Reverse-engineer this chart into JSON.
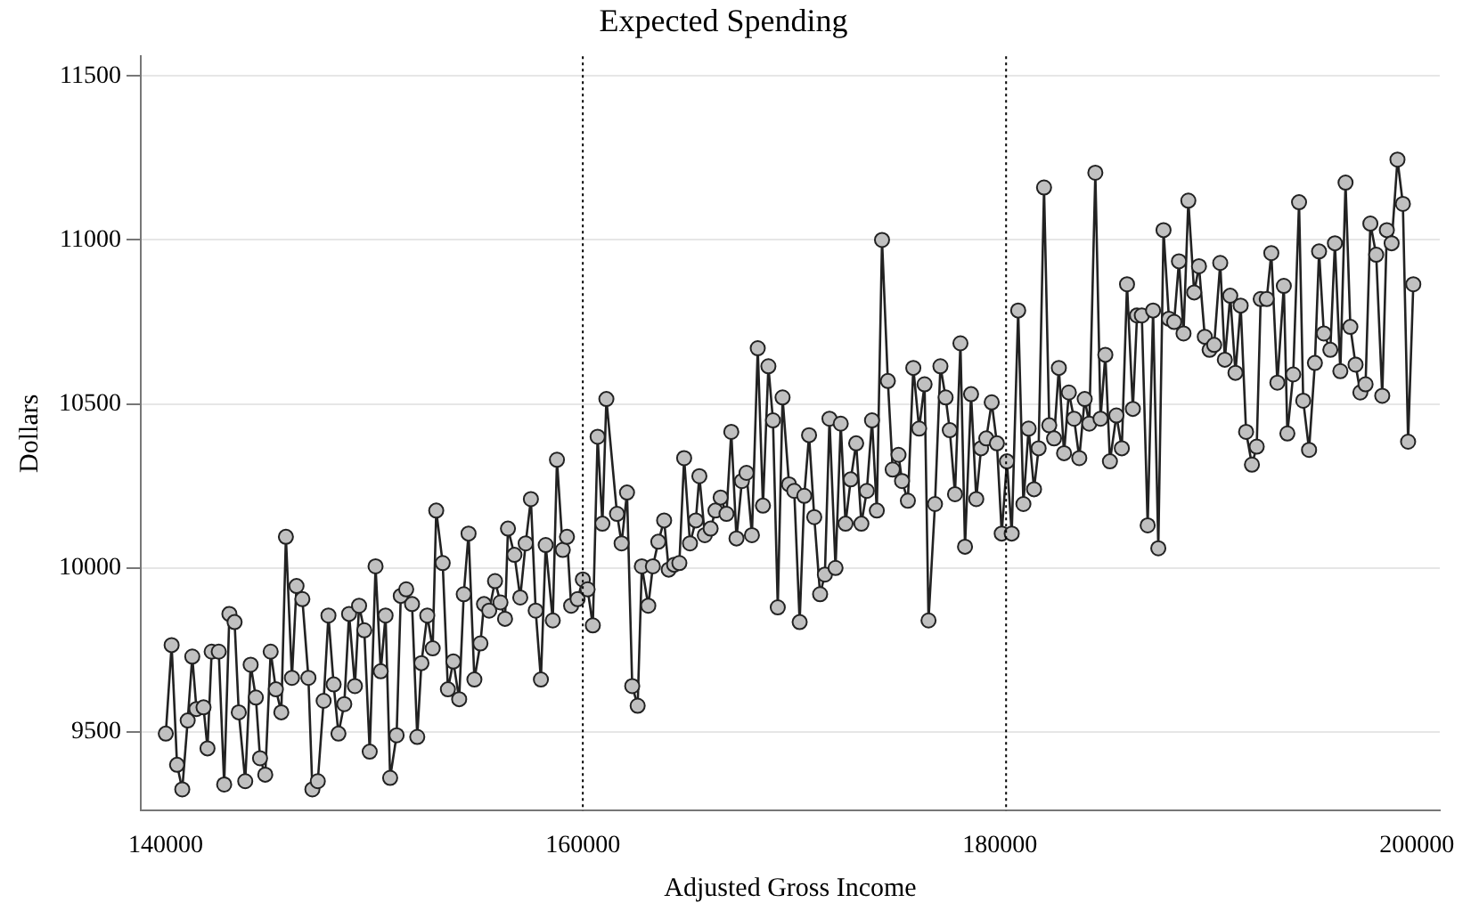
{
  "chart_data": {
    "type": "line",
    "title": "Expected Spending",
    "xlabel": "Adjusted Gross Income",
    "ylabel": "Dollars",
    "xlim": [
      138800,
      201100
    ],
    "xticks": [
      140000,
      160000,
      180000,
      200000
    ],
    "ylim": [
      9260,
      11560
    ],
    "yticks": [
      9500,
      10000,
      10500,
      11000,
      11500
    ],
    "grid": "y",
    "legend": false,
    "marker": "circle",
    "line_style": "solid",
    "ref_lines": [
      {
        "axis": "x",
        "value": 160000,
        "line_style": "dotted",
        "color": "#000000"
      },
      {
        "axis": "x",
        "value": 180300,
        "line_style": "dotted",
        "color": "#000000"
      }
    ],
    "series": [
      {
        "color": "#c0c0c0",
        "x": [
          140000,
          140280,
          140540,
          140790,
          141050,
          141270,
          141470,
          141810,
          142000,
          142200,
          142540,
          142800,
          143050,
          143300,
          143500,
          143810,
          144070,
          144320,
          144520,
          144770,
          145030,
          145280,
          145540,
          145760,
          146050,
          146270,
          146550,
          146840,
          147030,
          147290,
          147570,
          147800,
          148050,
          148280,
          148560,
          148790,
          149070,
          149270,
          149520,
          149780,
          150060,
          150310,
          150540,
          150760,
          151070,
          151270,
          151530,
          151810,
          152060,
          152260,
          152540,
          152800,
          152970,
          153280,
          153530,
          153790,
          154070,
          154290,
          154520,
          154800,
          155090,
          155260,
          155510,
          155790,
          156050,
          156270,
          156410,
          156720,
          157000,
          157260,
          157510,
          157740,
          157990,
          158220,
          158560,
          158760,
          159040,
          159240,
          159440,
          159750,
          160000,
          160230,
          160480,
          160710,
          160940,
          161130,
          161640,
          161860,
          162120,
          162370,
          162630,
          162830,
          163140,
          163360,
          163620,
          163900,
          164120,
          164380,
          164630,
          164860,
          165140,
          165420,
          165590,
          165850,
          166130,
          166360,
          166610,
          166890,
          167120,
          167370,
          167630,
          167850,
          168110,
          168390,
          168640,
          168900,
          169120,
          169350,
          169580,
          169890,
          170140,
          170400,
          170620,
          170850,
          171100,
          171380,
          171610,
          171830,
          172120,
          172370,
          172600,
          172850,
          173110,
          173360,
          173620,
          173870,
          174100,
          174350,
          174630,
          174860,
          175140,
          175310,
          175590,
          175850,
          176130,
          176390,
          176580,
          176890,
          177150,
          177400,
          177600,
          177850,
          178110,
          178330,
          178620,
          178870,
          179100,
          179350,
          179610,
          179860,
          180090,
          180340,
          180570,
          180880,
          181130,
          181380,
          181640,
          181860,
          182120,
          182370,
          182600,
          182830,
          183080,
          183310,
          183560,
          183810,
          184070,
          184290,
          184580,
          184830,
          185060,
          185280,
          185590,
          185850,
          186100,
          186380,
          186580,
          186810,
          187090,
          187350,
          187600,
          187850,
          188110,
          188360,
          188590,
          188810,
          189040,
          189320,
          189550,
          189830,
          190060,
          190280,
          190570,
          190790,
          191050,
          191300,
          191550,
          191810,
          192090,
          192320,
          192510,
          192800,
          193020,
          193310,
          193620,
          193790,
          194070,
          194350,
          194550,
          194830,
          195110,
          195310,
          195540,
          195850,
          196070,
          196330,
          196580,
          196810,
          197060,
          197290,
          197540,
          197770,
          198050,
          198340,
          198560,
          198790,
          199070,
          199330,
          199580,
          199830
        ],
        "values": [
          9495,
          9765,
          9400,
          9325,
          9535,
          9730,
          9570,
          9575,
          9450,
          9745,
          9745,
          9340,
          9860,
          9835,
          9560,
          9350,
          9705,
          9605,
          9420,
          9370,
          9745,
          9630,
          9560,
          10095,
          9665,
          9945,
          9905,
          9665,
          9325,
          9350,
          9595,
          9855,
          9645,
          9495,
          9585,
          9860,
          9640,
          9885,
          9810,
          9440,
          10005,
          9685,
          9855,
          9360,
          9490,
          9915,
          9935,
          9890,
          9485,
          9710,
          9855,
          9755,
          10175,
          10015,
          9630,
          9715,
          9600,
          9920,
          10105,
          9660,
          9770,
          9890,
          9870,
          9960,
          9895,
          9845,
          10120,
          10040,
          9910,
          10075,
          10210,
          9870,
          9660,
          10070,
          9840,
          10330,
          10055,
          10095,
          9885,
          9905,
          9965,
          9935,
          9825,
          10400,
          10135,
          10515,
          10165,
          10075,
          10230,
          9640,
          9580,
          10005,
          9885,
          10005,
          10080,
          10145,
          9995,
          10010,
          10015,
          10335,
          10075,
          10145,
          10280,
          10100,
          10120,
          10175,
          10215,
          10165,
          10415,
          10090,
          10265,
          10290,
          10100,
          10670,
          10190,
          10615,
          10450,
          9880,
          10520,
          10255,
          10235,
          9835,
          10220,
          10405,
          10155,
          9920,
          9980,
          10455,
          10000,
          10440,
          10135,
          10270,
          10380,
          10135,
          10235,
          10450,
          10175,
          11000,
          10570,
          10300,
          10345,
          10265,
          10205,
          10610,
          10425,
          10560,
          9840,
          10195,
          10615,
          10520,
          10420,
          10225,
          10685,
          10065,
          10530,
          10210,
          10365,
          10395,
          10505,
          10380,
          10105,
          10325,
          10105,
          10785,
          10195,
          10425,
          10240,
          10365,
          11160,
          10435,
          10395,
          10610,
          10350,
          10535,
          10455,
          10335,
          10515,
          10440,
          11205,
          10455,
          10650,
          10325,
          10465,
          10365,
          10865,
          10485,
          10770,
          10770,
          10130,
          10785,
          10060,
          11030,
          10760,
          10750,
          10935,
          10715,
          11120,
          10840,
          10920,
          10705,
          10665,
          10680,
          10930,
          10635,
          10830,
          10595,
          10800,
          10415,
          10315,
          10370,
          10820,
          10820,
          10960,
          10565,
          10860,
          10410,
          10590,
          11115,
          10510,
          10360,
          10625,
          10965,
          10715,
          10665,
          10990,
          10600,
          11175,
          10735,
          10620,
          10535,
          10560,
          11050,
          10955,
          10525,
          11030,
          10990,
          11245,
          11110,
          10385,
          10865
        ]
      }
    ]
  }
}
